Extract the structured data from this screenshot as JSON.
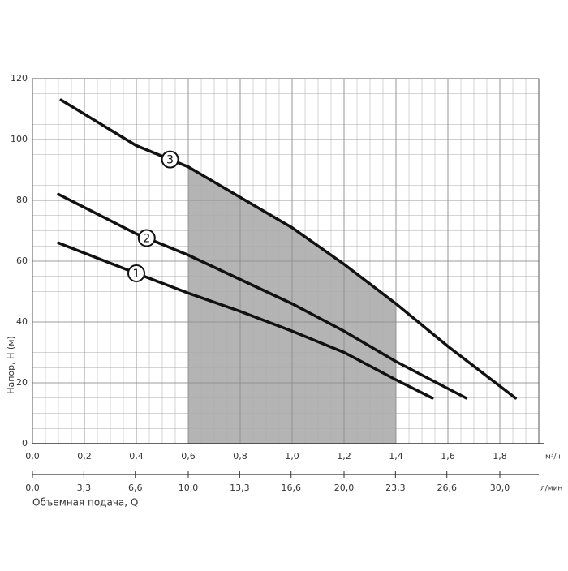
{
  "chart_data": {
    "type": "line",
    "y_label": "Напор, Н (м)",
    "x_unit": "м³/ч",
    "x2_unit": "л/мин",
    "x_label": "Объемная подача, Q",
    "xlim": [
      0,
      1.95
    ],
    "ylim": [
      0,
      120
    ],
    "xticks": [
      {
        "value": 0,
        "label": "0,0"
      },
      {
        "value": 0.2,
        "label": "0,2"
      },
      {
        "value": 0.4,
        "label": "0,4"
      },
      {
        "value": 0.6,
        "label": "0,6"
      },
      {
        "value": 0.8,
        "label": "0,8"
      },
      {
        "value": 1.0,
        "label": "1,0"
      },
      {
        "value": 1.2,
        "label": "1,2"
      },
      {
        "value": 1.4,
        "label": "1,4"
      },
      {
        "value": 1.6,
        "label": "1,6"
      },
      {
        "value": 1.8,
        "label": "1,8"
      }
    ],
    "yticks": [
      0,
      20,
      40,
      60,
      80,
      100,
      120
    ],
    "x2lim": [
      0,
      32.5
    ],
    "x2ticks": [
      {
        "value": 0,
        "label": "0,0"
      },
      {
        "value": 3.3,
        "label": "3,3"
      },
      {
        "value": 6.6,
        "label": "6,6"
      },
      {
        "value": 10.0,
        "label": "10,0"
      },
      {
        "value": 13.3,
        "label": "13,3"
      },
      {
        "value": 16.6,
        "label": "16,6"
      },
      {
        "value": 20.0,
        "label": "20,0"
      },
      {
        "value": 23.3,
        "label": "23,3"
      },
      {
        "value": 26.6,
        "label": "26,6"
      },
      {
        "value": 30.0,
        "label": "30,0"
      }
    ],
    "grid": true,
    "shaded_range": [
      0.6,
      1.4
    ],
    "shaded_color": "#b4b4b4",
    "series": [
      {
        "name": "1",
        "color": "#111111",
        "x": [
          0.1,
          0.4,
          0.6,
          0.8,
          1.0,
          1.2,
          1.4,
          1.54
        ],
        "values": [
          66,
          56,
          49.5,
          43.5,
          37,
          30,
          21,
          15
        ]
      },
      {
        "name": "2",
        "color": "#111111",
        "x": [
          0.1,
          0.4,
          0.6,
          0.8,
          1.0,
          1.2,
          1.4,
          1.67
        ],
        "values": [
          82,
          69,
          62,
          54,
          46,
          37,
          27,
          15
        ]
      },
      {
        "name": "3",
        "color": "#111111",
        "x": [
          0.11,
          0.4,
          0.6,
          0.8,
          1.0,
          1.2,
          1.4,
          1.6,
          1.86
        ],
        "values": [
          113,
          98,
          91,
          81,
          71,
          59,
          46,
          32,
          15
        ]
      }
    ]
  }
}
